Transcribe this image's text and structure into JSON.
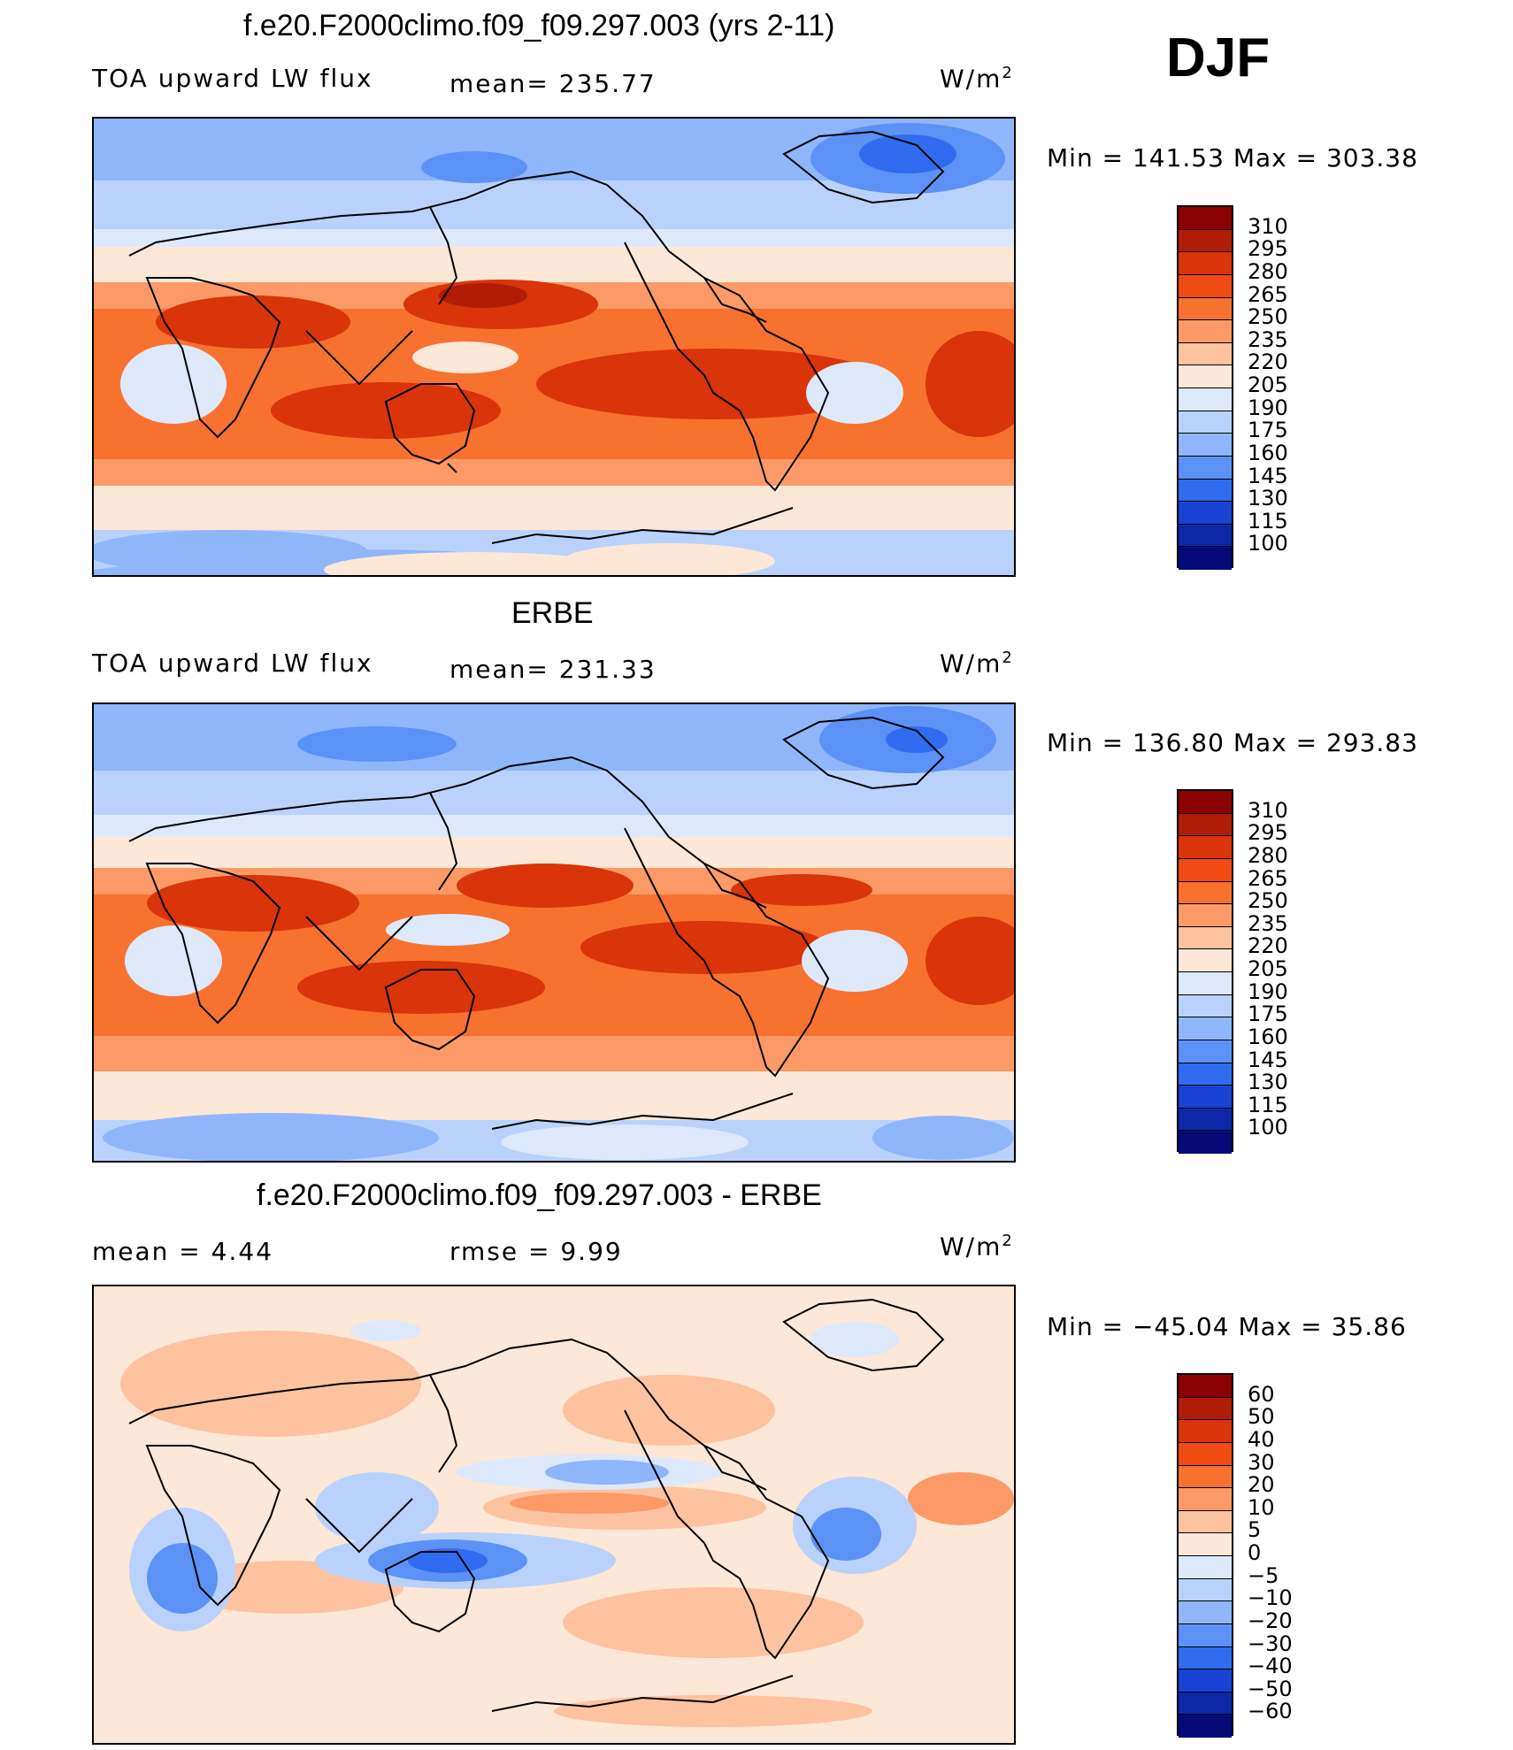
{
  "season": "DJF",
  "unit_base": "W/m",
  "unit_exp": "2",
  "panels": [
    {
      "title": "f.e20.F2000climo.f09_f09.297.003 (yrs 2-11)",
      "left_label": "TOA upward LW flux",
      "middle_label": "mean= 235.77",
      "minmax": "Min  =  141.53  Max  =  303.38"
    },
    {
      "title": "ERBE",
      "left_label": "TOA upward LW flux",
      "middle_label": "mean= 231.33",
      "minmax": "Min  =  136.80  Max  =  293.83"
    },
    {
      "title": "f.e20.F2000climo.f09_f09.297.003 - ERBE",
      "left_label": "mean  =     4.44",
      "middle_label": "rmse  =     9.99",
      "minmax": "Min  =  −45.04  Max  =    35.86"
    }
  ],
  "colorbars": {
    "absolute": {
      "labels": [
        "310",
        "295",
        "280",
        "265",
        "250",
        "235",
        "220",
        "205",
        "190",
        "175",
        "160",
        "145",
        "130",
        "115",
        "100"
      ],
      "colors": [
        "#8b0000",
        "#b01c05",
        "#d9340a",
        "#f04b12",
        "#f7722f",
        "#fb9a66",
        "#fdc2a0",
        "#fde7d7",
        "#dde9fb",
        "#b9d2fb",
        "#8fb6fb",
        "#5c92f5",
        "#2f6cf0",
        "#1742d2",
        "#0a28a8",
        "#040a78"
      ]
    },
    "difference": {
      "labels": [
        "60",
        "50",
        "40",
        "30",
        "20",
        "10",
        "5",
        "0",
        "−5",
        "−10",
        "−20",
        "−30",
        "−40",
        "−50",
        "−60"
      ],
      "colors": [
        "#8b0000",
        "#b01c05",
        "#d9340a",
        "#f04b12",
        "#f7722f",
        "#fb9a66",
        "#fdc2a0",
        "#fde7d7",
        "#dde9fb",
        "#b9d2fb",
        "#8fb6fb",
        "#5c92f5",
        "#2f6cf0",
        "#1742d2",
        "#0a28a8",
        "#040a78"
      ]
    }
  }
}
